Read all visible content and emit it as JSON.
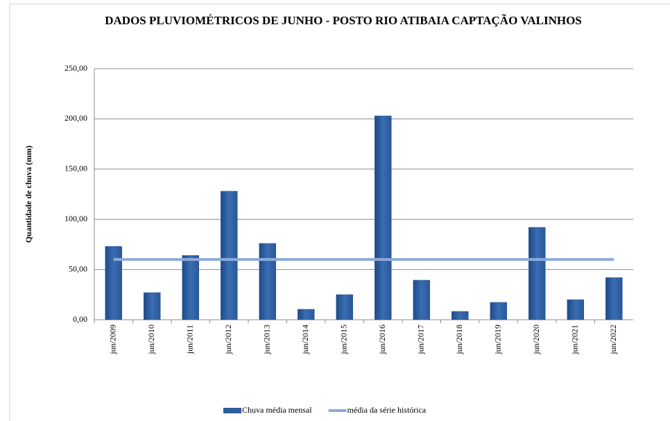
{
  "chart_data": {
    "type": "bar",
    "title": "DADOS PLUVIOMÉTRICOS DE JUNHO - POSTO RIO ATIBAIA CAPTAÇÃO VALINHOS",
    "y_label": "Quantidade de chuva (mm)",
    "categories": [
      "jun/2009",
      "jun/2010",
      "jun/2011",
      "jun/2012",
      "jun/2013",
      "jun/2014",
      "jun/2015",
      "jun/2016",
      "jun/2017",
      "jun/2018",
      "jun/2019",
      "jun/2020",
      "jun/2021",
      "jun/2022"
    ],
    "series": [
      {
        "name": "Chuva média mensal",
        "type": "bar",
        "color": "#2e5c9e",
        "values": [
          73,
          27,
          64,
          128,
          76,
          10.4,
          25,
          203,
          39.4,
          8.3,
          17.3,
          92,
          20,
          42
        ]
      },
      {
        "name": "média da série histórica",
        "type": "line",
        "color": "#8eaadb",
        "values": [
          60,
          60,
          60,
          60,
          60,
          60,
          60,
          60,
          60,
          60,
          60,
          60,
          60,
          60
        ]
      }
    ],
    "ylim": [
      0,
      250
    ],
    "yticks": [
      {
        "value": 0,
        "label": "0,00"
      },
      {
        "value": 50,
        "label": "50,00"
      },
      {
        "value": 100,
        "label": "100,00"
      },
      {
        "value": 150,
        "label": "150,00"
      },
      {
        "value": 200,
        "label": "200,00"
      },
      {
        "value": 250,
        "label": "250,00"
      }
    ],
    "grid": true,
    "legend": "bottom"
  }
}
